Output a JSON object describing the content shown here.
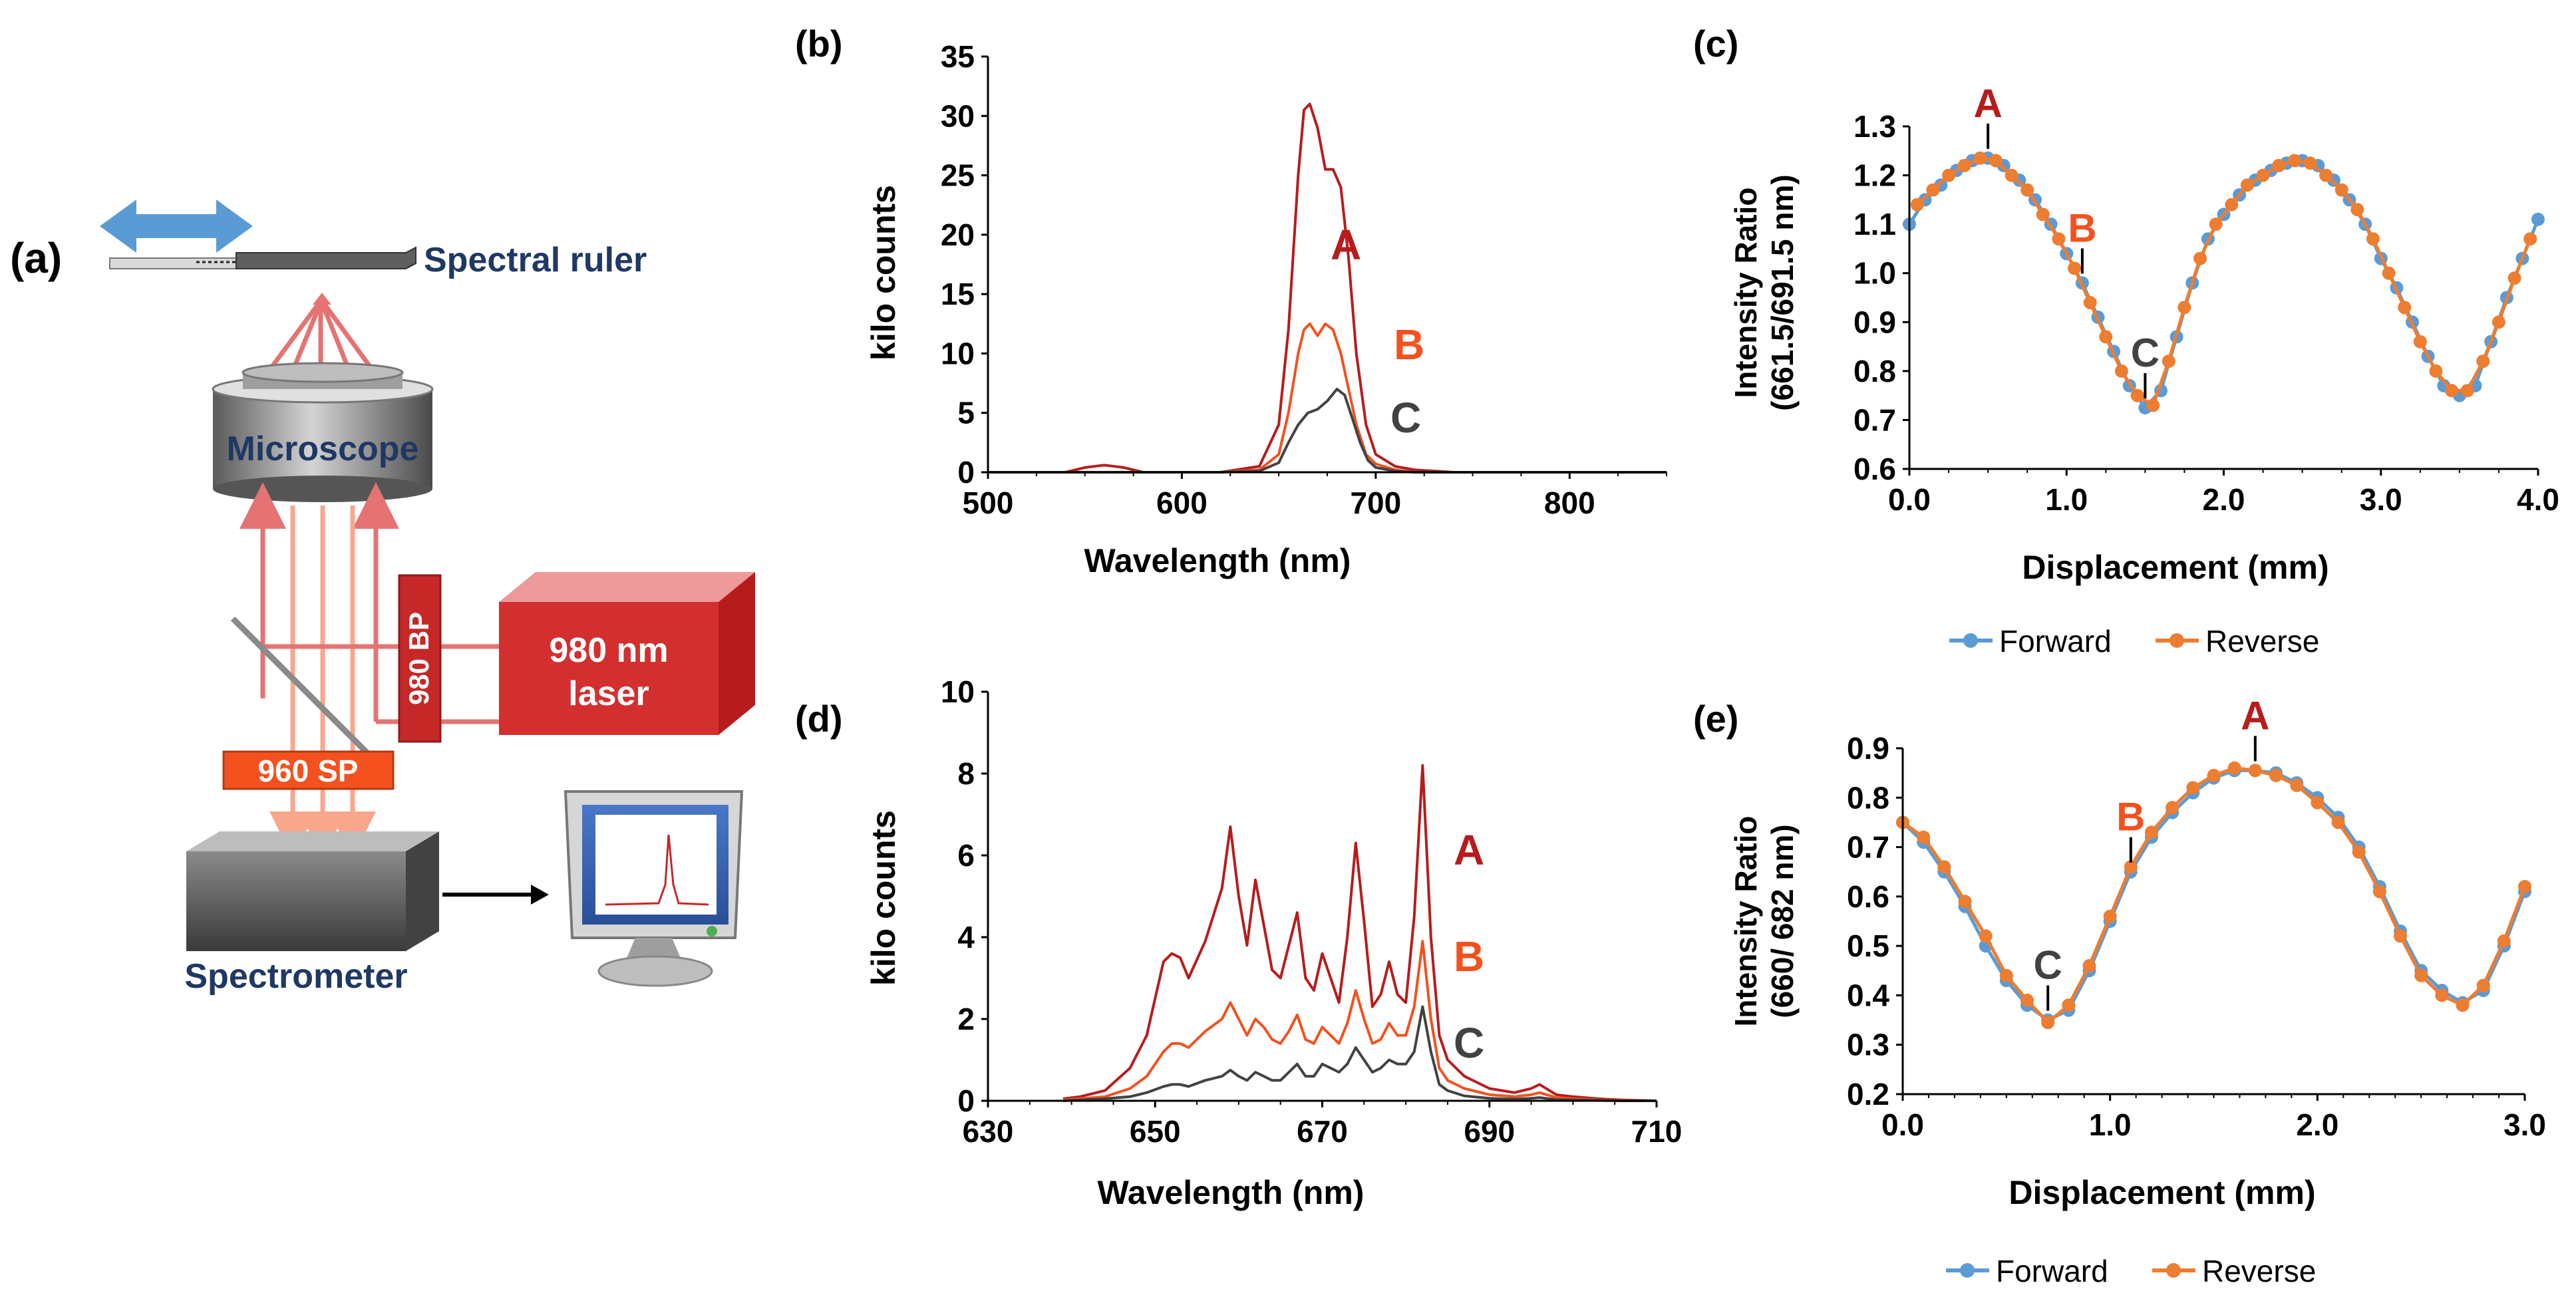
{
  "colors": {
    "A": "#b71c1c",
    "B": "#f4511e",
    "C": "#424242",
    "forward": "#5b9bd5",
    "reverse": "#ed7d31",
    "beam": "#e57373",
    "beam_light": "#f8a78d",
    "arrow": "#5b9bd5",
    "navy": "#1f3864"
  },
  "panel_a": {
    "label": "(a)",
    "spectral_ruler": "Spectral ruler",
    "microscope": "Microscope",
    "bp_filter": "980 BP",
    "laser_line1": "980 nm",
    "laser_line2": "laser",
    "sp_filter": "960 SP",
    "spectrometer": "Spectrometer",
    "icons": [
      "double-arrow-icon",
      "monitor-icon"
    ]
  },
  "chart_data": [
    {
      "panel": "(b)",
      "type": "line",
      "xlabel": "Wavelength (nm)",
      "ylabel": "kilo counts",
      "xlim": [
        500,
        850
      ],
      "ylim": [
        0,
        35
      ],
      "xticks": [
        500,
        600,
        700,
        800
      ],
      "yticks": [
        0,
        5,
        10,
        15,
        20,
        25,
        30,
        35
      ],
      "series": [
        {
          "name": "A",
          "x": [
            500,
            540,
            550,
            560,
            570,
            580,
            620,
            640,
            650,
            655,
            660,
            663,
            666,
            670,
            674,
            678,
            682,
            686,
            690,
            695,
            700,
            710,
            720,
            740,
            780,
            850
          ],
          "y": [
            0,
            0,
            0.4,
            0.6,
            0.4,
            0,
            0,
            0.5,
            4,
            12,
            25,
            30.5,
            31,
            29,
            25.5,
            25.5,
            24,
            18,
            10,
            4,
            1.5,
            0.5,
            0.2,
            0,
            0,
            0
          ]
        },
        {
          "name": "B",
          "x": [
            500,
            620,
            640,
            650,
            655,
            660,
            663,
            666,
            670,
            674,
            678,
            682,
            686,
            690,
            695,
            700,
            710,
            720,
            850
          ],
          "y": [
            0,
            0,
            0.2,
            1.5,
            5,
            10,
            12,
            12.5,
            11.5,
            12.5,
            12,
            10,
            7,
            4,
            1.5,
            0.7,
            0.2,
            0,
            0
          ]
        },
        {
          "name": "C",
          "x": [
            500,
            620,
            640,
            650,
            655,
            660,
            665,
            670,
            675,
            680,
            684,
            688,
            692,
            696,
            700,
            710,
            720,
            850
          ],
          "y": [
            0,
            0,
            0.1,
            0.8,
            2.5,
            4,
            5,
            5.3,
            6,
            7,
            6.5,
            4.5,
            2.5,
            1,
            0.4,
            0.1,
            0,
            0
          ]
        }
      ],
      "annotations": [
        "A",
        "B",
        "C"
      ]
    },
    {
      "panel": "(c)",
      "type": "line",
      "xlabel": "Displacement (mm)",
      "ylabel_line1": "Intensity Ratio",
      "ylabel_line2": "(661.5/691.5 nm)",
      "xlim": [
        0,
        4
      ],
      "ylim": [
        0.6,
        1.3
      ],
      "xticks": [
        "0.0",
        "1.0",
        "2.0",
        "3.0",
        "4.0"
      ],
      "yticks": [
        "0.6",
        "0.7",
        "0.8",
        "0.9",
        "1.0",
        "1.1",
        "1.2",
        "1.3"
      ],
      "series": [
        {
          "name": "Forward",
          "x": [
            0,
            0.1,
            0.2,
            0.3,
            0.4,
            0.5,
            0.6,
            0.7,
            0.8,
            0.9,
            1.0,
            1.1,
            1.2,
            1.3,
            1.4,
            1.5,
            1.6,
            1.7,
            1.8,
            1.9,
            2.0,
            2.1,
            2.2,
            2.3,
            2.4,
            2.5,
            2.6,
            2.7,
            2.8,
            2.9,
            3.0,
            3.1,
            3.2,
            3.3,
            3.4,
            3.5,
            3.6,
            3.7,
            3.8,
            3.9,
            4.0
          ],
          "y": [
            1.1,
            1.15,
            1.18,
            1.21,
            1.23,
            1.235,
            1.22,
            1.19,
            1.15,
            1.1,
            1.04,
            0.98,
            0.91,
            0.84,
            0.77,
            0.725,
            0.76,
            0.87,
            0.98,
            1.07,
            1.12,
            1.16,
            1.19,
            1.21,
            1.225,
            1.23,
            1.22,
            1.19,
            1.15,
            1.1,
            1.03,
            0.97,
            0.9,
            0.83,
            0.77,
            0.75,
            0.77,
            0.86,
            0.95,
            1.03,
            1.11
          ]
        },
        {
          "name": "Reverse",
          "x": [
            0.05,
            0.15,
            0.25,
            0.35,
            0.45,
            0.55,
            0.65,
            0.75,
            0.85,
            0.95,
            1.05,
            1.15,
            1.25,
            1.35,
            1.45,
            1.55,
            1.65,
            1.75,
            1.85,
            1.95,
            2.05,
            2.15,
            2.25,
            2.35,
            2.45,
            2.55,
            2.65,
            2.75,
            2.85,
            2.95,
            3.05,
            3.15,
            3.25,
            3.35,
            3.45,
            3.55,
            3.65,
            3.75,
            3.85,
            3.95
          ],
          "y": [
            1.14,
            1.17,
            1.2,
            1.22,
            1.235,
            1.23,
            1.2,
            1.17,
            1.12,
            1.07,
            1.01,
            0.94,
            0.87,
            0.8,
            0.75,
            0.73,
            0.82,
            0.93,
            1.03,
            1.1,
            1.14,
            1.18,
            1.2,
            1.22,
            1.23,
            1.225,
            1.2,
            1.17,
            1.13,
            1.07,
            1.0,
            0.93,
            0.86,
            0.8,
            0.76,
            0.76,
            0.82,
            0.9,
            0.99,
            1.07
          ]
        }
      ],
      "annotations": [
        {
          "label": "A",
          "x": 0.5
        },
        {
          "label": "B",
          "x": 1.1
        },
        {
          "label": "C",
          "x": 1.5
        }
      ],
      "legend": [
        "Forward",
        "Reverse"
      ]
    },
    {
      "panel": "(d)",
      "type": "line",
      "xlabel": "Wavelength (nm)",
      "ylabel": "kilo counts",
      "xlim": [
        630,
        710
      ],
      "ylim": [
        0,
        10
      ],
      "xticks": [
        630,
        650,
        670,
        690,
        710
      ],
      "yticks": [
        0,
        2,
        4,
        6,
        8,
        10
      ],
      "series": [
        {
          "name": "A",
          "x": [
            639,
            641,
            644,
            647,
            649,
            651,
            652,
            653,
            654,
            656,
            658,
            659,
            660,
            661,
            662,
            663,
            664,
            665,
            666,
            667,
            668,
            669,
            670,
            671,
            672,
            673,
            674,
            675,
            676,
            677,
            678,
            679,
            680,
            681,
            682,
            683,
            684,
            685,
            687,
            690,
            693,
            695,
            696,
            698,
            700,
            703,
            706,
            710
          ],
          "y": [
            0.05,
            0.1,
            0.25,
            0.8,
            1.6,
            3.4,
            3.6,
            3.5,
            3.0,
            3.9,
            5.2,
            6.7,
            5.0,
            3.8,
            5.4,
            4.3,
            3.2,
            3.0,
            3.8,
            4.6,
            3.0,
            2.7,
            3.6,
            3.0,
            2.4,
            4.0,
            6.3,
            4.4,
            2.3,
            2.6,
            3.4,
            2.6,
            2.4,
            4.5,
            8.2,
            4.0,
            1.6,
            1.0,
            0.6,
            0.3,
            0.2,
            0.3,
            0.4,
            0.15,
            0.1,
            0.05,
            0.02,
            0.0
          ]
        },
        {
          "name": "B",
          "x": [
            639,
            641,
            644,
            647,
            649,
            651,
            652,
            653,
            654,
            656,
            658,
            659,
            660,
            661,
            662,
            663,
            664,
            665,
            666,
            667,
            668,
            669,
            670,
            671,
            672,
            673,
            674,
            675,
            676,
            677,
            678,
            679,
            680,
            681,
            682,
            683,
            684,
            685,
            687,
            690,
            693,
            695,
            696,
            698,
            700,
            703,
            706,
            710
          ],
          "y": [
            0.02,
            0.05,
            0.1,
            0.3,
            0.6,
            1.2,
            1.4,
            1.4,
            1.3,
            1.7,
            2.0,
            2.4,
            2.0,
            1.6,
            2.0,
            1.8,
            1.5,
            1.4,
            1.7,
            2.1,
            1.5,
            1.4,
            1.8,
            1.6,
            1.4,
            1.9,
            2.7,
            2.0,
            1.4,
            1.5,
            1.9,
            1.6,
            1.6,
            2.3,
            3.9,
            2.0,
            0.8,
            0.5,
            0.3,
            0.15,
            0.1,
            0.15,
            0.2,
            0.08,
            0.05,
            0.02,
            0.01,
            0.0
          ]
        },
        {
          "name": "C",
          "x": [
            639,
            641,
            644,
            647,
            649,
            651,
            652,
            653,
            654,
            656,
            658,
            659,
            660,
            661,
            662,
            663,
            664,
            665,
            666,
            667,
            668,
            669,
            670,
            671,
            672,
            673,
            674,
            675,
            676,
            677,
            678,
            679,
            680,
            681,
            682,
            683,
            684,
            685,
            687,
            690,
            693,
            695,
            696,
            698,
            700,
            703,
            706,
            710
          ],
          "y": [
            0.0,
            0.02,
            0.05,
            0.1,
            0.2,
            0.35,
            0.4,
            0.4,
            0.35,
            0.5,
            0.6,
            0.75,
            0.6,
            0.5,
            0.7,
            0.6,
            0.5,
            0.5,
            0.7,
            0.9,
            0.6,
            0.6,
            0.9,
            0.8,
            0.7,
            0.9,
            1.3,
            1.0,
            0.7,
            0.8,
            1.0,
            0.9,
            0.9,
            1.2,
            2.3,
            1.2,
            0.4,
            0.25,
            0.12,
            0.06,
            0.04,
            0.06,
            0.08,
            0.03,
            0.02,
            0.01,
            0.0,
            0.0
          ]
        }
      ],
      "annotations": [
        "A",
        "B",
        "C"
      ]
    },
    {
      "panel": "(e)",
      "type": "line",
      "xlabel": "Displacement (mm)",
      "ylabel_line1": "Intensity Ratio",
      "ylabel_line2": "(660/ 682 nm)",
      "xlim": [
        0,
        3
      ],
      "ylim": [
        0.2,
        0.9
      ],
      "xticks": [
        "0.0",
        "1.0",
        "2.0",
        "3.0"
      ],
      "yticks": [
        "0.2",
        "0.3",
        "0.4",
        "0.5",
        "0.6",
        "0.7",
        "0.8",
        "0.9"
      ],
      "series": [
        {
          "name": "Forward",
          "x": [
            0,
            0.1,
            0.2,
            0.3,
            0.4,
            0.5,
            0.6,
            0.7,
            0.8,
            0.9,
            1.0,
            1.1,
            1.2,
            1.3,
            1.4,
            1.5,
            1.6,
            1.7,
            1.8,
            1.9,
            2.0,
            2.1,
            2.2,
            2.3,
            2.4,
            2.5,
            2.6,
            2.7,
            2.8,
            2.9,
            3.0
          ],
          "y": [
            0.75,
            0.71,
            0.65,
            0.58,
            0.5,
            0.43,
            0.38,
            0.35,
            0.37,
            0.45,
            0.55,
            0.65,
            0.72,
            0.77,
            0.81,
            0.84,
            0.855,
            0.855,
            0.85,
            0.83,
            0.8,
            0.76,
            0.7,
            0.62,
            0.53,
            0.45,
            0.41,
            0.385,
            0.41,
            0.5,
            0.61
          ]
        },
        {
          "name": "Reverse",
          "x": [
            0,
            0.1,
            0.2,
            0.3,
            0.4,
            0.5,
            0.6,
            0.7,
            0.8,
            0.9,
            1.0,
            1.1,
            1.2,
            1.3,
            1.4,
            1.5,
            1.6,
            1.7,
            1.8,
            1.9,
            2.0,
            2.1,
            2.2,
            2.3,
            2.4,
            2.5,
            2.6,
            2.7,
            2.8,
            2.9,
            3.0
          ],
          "y": [
            0.75,
            0.72,
            0.66,
            0.59,
            0.52,
            0.44,
            0.39,
            0.345,
            0.38,
            0.46,
            0.56,
            0.66,
            0.73,
            0.78,
            0.82,
            0.845,
            0.86,
            0.855,
            0.845,
            0.825,
            0.79,
            0.75,
            0.69,
            0.61,
            0.52,
            0.44,
            0.4,
            0.38,
            0.42,
            0.51,
            0.62
          ]
        }
      ],
      "annotations": [
        {
          "label": "A",
          "x": 1.7
        },
        {
          "label": "B",
          "x": 1.1
        },
        {
          "label": "C",
          "x": 0.7
        }
      ],
      "legend": [
        "Forward",
        "Reverse"
      ]
    }
  ]
}
